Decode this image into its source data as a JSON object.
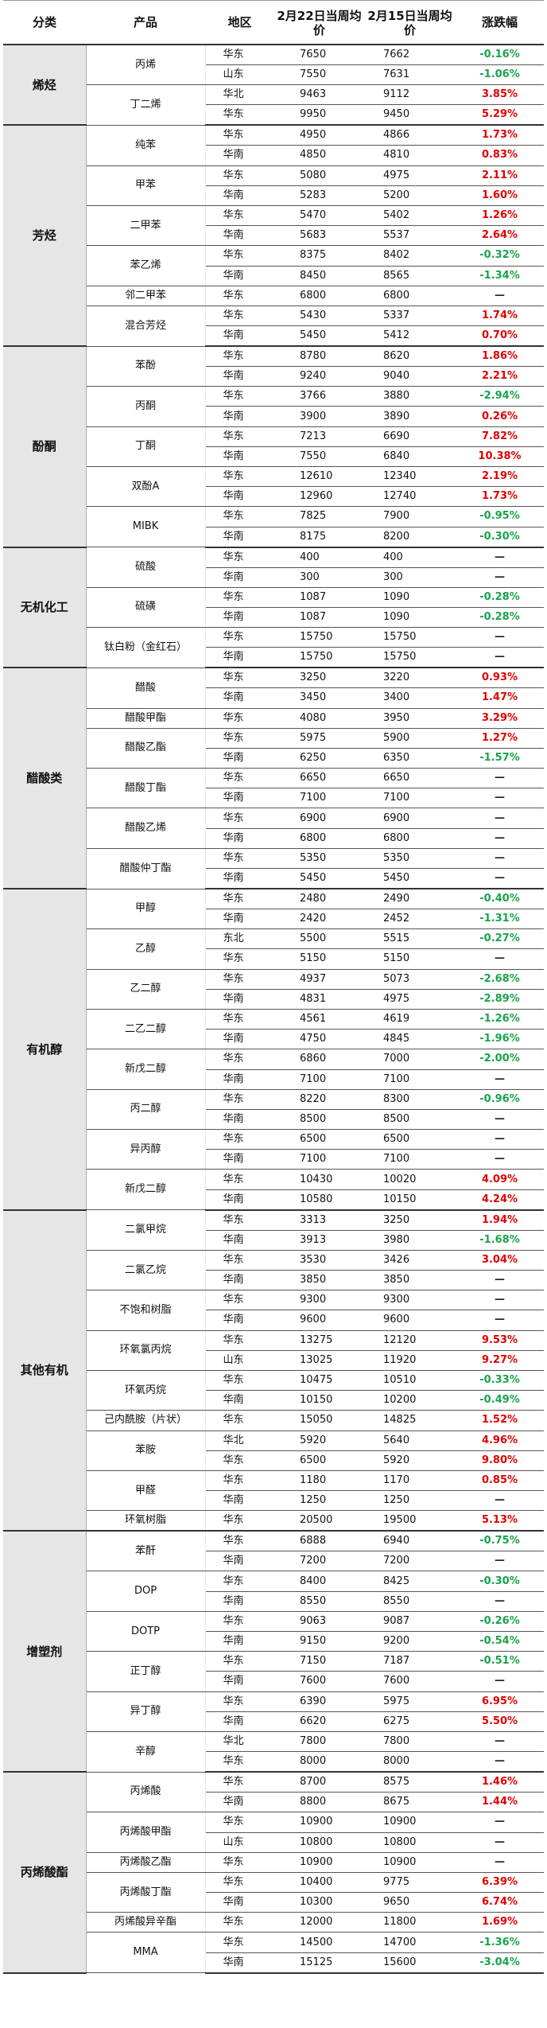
{
  "headers": [
    "分类",
    "产品",
    "地区",
    "2月22日当周均价",
    "2月15日当周均价",
    "涨跌幅"
  ],
  "categories": [
    {
      "name": "烯烃",
      "products": [
        {
          "name": "丙烯",
          "rows": [
            [
              "华东",
              "7650",
              "7662",
              "-0.16%"
            ],
            [
              "山东",
              "7550",
              "7631",
              "-1.06%"
            ]
          ]
        },
        {
          "name": "丁二烯",
          "rows": [
            [
              "华北",
              "9463",
              "9112",
              "3.85%"
            ],
            [
              "华东",
              "9950",
              "9450",
              "5.29%"
            ]
          ]
        }
      ]
    },
    {
      "name": "芳烃",
      "products": [
        {
          "name": "纯苯",
          "rows": [
            [
              "华东",
              "4950",
              "4866",
              "1.73%"
            ],
            [
              "华南",
              "4850",
              "4810",
              "0.83%"
            ]
          ]
        },
        {
          "name": "甲苯",
          "rows": [
            [
              "华东",
              "5080",
              "4975",
              "2.11%"
            ],
            [
              "华南",
              "5283",
              "5200",
              "1.60%"
            ]
          ]
        },
        {
          "name": "二甲苯",
          "rows": [
            [
              "华东",
              "5470",
              "5402",
              "1.26%"
            ],
            [
              "华南",
              "5683",
              "5537",
              "2.64%"
            ]
          ]
        },
        {
          "name": "苯乙烯",
          "rows": [
            [
              "华东",
              "8375",
              "8402",
              "-0.32%"
            ],
            [
              "华南",
              "8450",
              "8565",
              "-1.34%"
            ]
          ]
        },
        {
          "name": "邻二甲苯",
          "rows": [
            [
              "华东",
              "6800",
              "6800",
              "—"
            ]
          ]
        },
        {
          "name": "混合芳烃",
          "rows": [
            [
              "华东",
              "5430",
              "5337",
              "1.74%"
            ],
            [
              "华南",
              "5450",
              "5412",
              "0.70%"
            ]
          ]
        }
      ]
    },
    {
      "name": "酚酮",
      "products": [
        {
          "name": "苯酚",
          "rows": [
            [
              "华东",
              "8780",
              "8620",
              "1.86%"
            ],
            [
              "华南",
              "9240",
              "9040",
              "2.21%"
            ]
          ]
        },
        {
          "name": "丙酮",
          "rows": [
            [
              "华东",
              "3766",
              "3880",
              "-2.94%"
            ],
            [
              "华南",
              "3900",
              "3890",
              "0.26%"
            ]
          ]
        },
        {
          "name": "丁酮",
          "rows": [
            [
              "华东",
              "7213",
              "6690",
              "7.82%"
            ],
            [
              "华南",
              "7550",
              "6840",
              "10.38%"
            ]
          ]
        },
        {
          "name": "双酚A",
          "rows": [
            [
              "华东",
              "12610",
              "12340",
              "2.19%"
            ],
            [
              "华南",
              "12960",
              "12740",
              "1.73%"
            ]
          ]
        },
        {
          "name": "MIBK",
          "rows": [
            [
              "华东",
              "7825",
              "7900",
              "-0.95%"
            ],
            [
              "华南",
              "8175",
              "8200",
              "-0.30%"
            ]
          ]
        }
      ]
    },
    {
      "name": "无机化工",
      "products": [
        {
          "name": "硫酸",
          "rows": [
            [
              "华东",
              "400",
              "400",
              "—"
            ],
            [
              "华南",
              "300",
              "300",
              "—"
            ]
          ]
        },
        {
          "name": "硫磺",
          "rows": [
            [
              "华东",
              "1087",
              "1090",
              "-0.28%"
            ],
            [
              "华南",
              "1087",
              "1090",
              "-0.28%"
            ]
          ]
        },
        {
          "name": "钛白粉（金红石）",
          "rows": [
            [
              "华东",
              "15750",
              "15750",
              "—"
            ],
            [
              "华南",
              "15750",
              "15750",
              "—"
            ]
          ]
        }
      ]
    },
    {
      "name": "醋酸类",
      "products": [
        {
          "name": "醋酸",
          "rows": [
            [
              "华东",
              "3250",
              "3220",
              "0.93%"
            ],
            [
              "华南",
              "3450",
              "3400",
              "1.47%"
            ]
          ]
        },
        {
          "name": "醋酸甲酯",
          "rows": [
            [
              "华东",
              "4080",
              "3950",
              "3.29%"
            ]
          ]
        },
        {
          "name": "醋酸乙酯",
          "rows": [
            [
              "华东",
              "5975",
              "5900",
              "1.27%"
            ],
            [
              "华南",
              "6250",
              "6350",
              "-1.57%"
            ]
          ]
        },
        {
          "name": "醋酸丁酯",
          "rows": [
            [
              "华东",
              "6650",
              "6650",
              "—"
            ],
            [
              "华南",
              "7100",
              "7100",
              "—"
            ]
          ]
        },
        {
          "name": "醋酸乙烯",
          "rows": [
            [
              "华东",
              "6900",
              "6900",
              "—"
            ],
            [
              "华南",
              "6800",
              "6800",
              "—"
            ]
          ]
        },
        {
          "name": "醋酸仲丁酯",
          "rows": [
            [
              "华东",
              "5350",
              "5350",
              "—"
            ],
            [
              "华南",
              "5450",
              "5450",
              "—"
            ]
          ]
        }
      ]
    },
    {
      "name": "有机醇",
      "products": [
        {
          "name": "甲醇",
          "rows": [
            [
              "华东",
              "2480",
              "2490",
              "-0.40%"
            ],
            [
              "华南",
              "2420",
              "2452",
              "-1.31%"
            ]
          ]
        },
        {
          "name": "乙醇",
          "rows": [
            [
              "东北",
              "5500",
              "5515",
              "-0.27%"
            ],
            [
              "华东",
              "5150",
              "5150",
              "—"
            ]
          ]
        },
        {
          "name": "乙二醇",
          "rows": [
            [
              "华东",
              "4937",
              "5073",
              "-2.68%"
            ],
            [
              "华南",
              "4831",
              "4975",
              "-2.89%"
            ]
          ]
        },
        {
          "name": "二乙二醇",
          "rows": [
            [
              "华东",
              "4561",
              "4619",
              "-1.26%"
            ],
            [
              "华南",
              "4750",
              "4845",
              "-1.96%"
            ]
          ]
        },
        {
          "name": "新戊二醇",
          "rows": [
            [
              "华东",
              "6860",
              "7000",
              "-2.00%"
            ],
            [
              "华南",
              "7100",
              "7100",
              "—"
            ]
          ]
        },
        {
          "name": "丙二醇",
          "rows": [
            [
              "华东",
              "8220",
              "8300",
              "-0.96%"
            ],
            [
              "华南",
              "8500",
              "8500",
              "—"
            ]
          ]
        },
        {
          "name": "异丙醇",
          "rows": [
            [
              "华东",
              "6500",
              "6500",
              "—"
            ],
            [
              "华南",
              "7100",
              "7100",
              "—"
            ]
          ]
        },
        {
          "name": "新戊二醇",
          "rows": [
            [
              "华东",
              "10430",
              "10020",
              "4.09%"
            ],
            [
              "华南",
              "10580",
              "10150",
              "4.24%"
            ]
          ]
        }
      ]
    },
    {
      "name": "其他有机",
      "products": [
        {
          "name": "二氯甲烷",
          "rows": [
            [
              "华东",
              "3313",
              "3250",
              "1.94%"
            ],
            [
              "华南",
              "3913",
              "3980",
              "-1.68%"
            ]
          ]
        },
        {
          "name": "二氯乙烷",
          "rows": [
            [
              "华东",
              "3530",
              "3426",
              "3.04%"
            ],
            [
              "华南",
              "3850",
              "3850",
              "—"
            ]
          ]
        },
        {
          "name": "不饱和树脂",
          "rows": [
            [
              "华东",
              "9300",
              "9300",
              "—"
            ],
            [
              "华南",
              "9600",
              "9600",
              "—"
            ]
          ]
        },
        {
          "name": "环氧氯丙烷",
          "rows": [
            [
              "华东",
              "13275",
              "12120",
              "9.53%"
            ],
            [
              "山东",
              "13025",
              "11920",
              "9.27%"
            ]
          ]
        },
        {
          "name": "环氧丙烷",
          "rows": [
            [
              "华东",
              "10475",
              "10510",
              "-0.33%"
            ],
            [
              "华南",
              "10150",
              "10200",
              "-0.49%"
            ]
          ]
        },
        {
          "name": "己内酰胺（片状）",
          "rows": [
            [
              "华东",
              "15050",
              "14825",
              "1.52%"
            ]
          ]
        },
        {
          "name": "苯胺",
          "rows": [
            [
              "华北",
              "5920",
              "5640",
              "4.96%"
            ],
            [
              "华东",
              "6500",
              "5920",
              "9.80%"
            ]
          ]
        },
        {
          "name": "甲醛",
          "rows": [
            [
              "华东",
              "1180",
              "1170",
              "0.85%"
            ],
            [
              "华南",
              "1250",
              "1250",
              "—"
            ]
          ]
        },
        {
          "name": "环氧树脂",
          "rows": [
            [
              "华东",
              "20500",
              "19500",
              "5.13%"
            ]
          ]
        }
      ]
    },
    {
      "name": "增塑剂",
      "products": [
        {
          "name": "苯酐",
          "rows": [
            [
              "华东",
              "6888",
              "6940",
              "-0.75%"
            ],
            [
              "华南",
              "7200",
              "7200",
              "—"
            ]
          ]
        },
        {
          "name": "DOP",
          "rows": [
            [
              "华东",
              "8400",
              "8425",
              "-0.30%"
            ],
            [
              "华南",
              "8550",
              "8550",
              "—"
            ]
          ]
        },
        {
          "name": "DOTP",
          "rows": [
            [
              "华东",
              "9063",
              "9087",
              "-0.26%"
            ],
            [
              "华南",
              "9150",
              "9200",
              "-0.54%"
            ]
          ]
        },
        {
          "name": "正丁醇",
          "rows": [
            [
              "华东",
              "7150",
              "7187",
              "-0.51%"
            ],
            [
              "华南",
              "7600",
              "7600",
              "—"
            ]
          ]
        },
        {
          "name": "异丁醇",
          "rows": [
            [
              "华东",
              "6390",
              "5975",
              "6.95%"
            ],
            [
              "华南",
              "6620",
              "6275",
              "5.50%"
            ]
          ]
        },
        {
          "name": "辛醇",
          "rows": [
            [
              "华北",
              "7800",
              "7800",
              "—"
            ],
            [
              "华东",
              "8000",
              "8000",
              "—"
            ]
          ]
        }
      ]
    },
    {
      "name": "丙烯酸酯",
      "products": [
        {
          "name": "丙烯酸",
          "rows": [
            [
              "华东",
              "8700",
              "8575",
              "1.46%"
            ],
            [
              "华南",
              "8800",
              "8675",
              "1.44%"
            ]
          ]
        },
        {
          "name": "丙烯酸甲酯",
          "rows": [
            [
              "华东",
              "10900",
              "10900",
              "—"
            ],
            [
              "山东",
              "10800",
              "10800",
              "—"
            ]
          ]
        },
        {
          "name": "丙烯酸乙酯",
          "rows": [
            [
              "华东",
              "10900",
              "10900",
              "—"
            ]
          ]
        },
        {
          "name": "丙烯酸丁酯",
          "rows": [
            [
              "华东",
              "10400",
              "9775",
              "6.39%"
            ],
            [
              "华南",
              "10300",
              "9650",
              "6.74%"
            ]
          ]
        },
        {
          "name": "丙烯酸异辛酯",
          "rows": [
            [
              "华东",
              "12000",
              "11800",
              "1.69%"
            ]
          ]
        },
        {
          "name": "MMA",
          "rows": [
            [
              "华东",
              "14500",
              "14700",
              "-1.36%"
            ],
            [
              "华南",
              "15125",
              "15600",
              "-3.04%"
            ]
          ]
        }
      ]
    }
  ]
}
